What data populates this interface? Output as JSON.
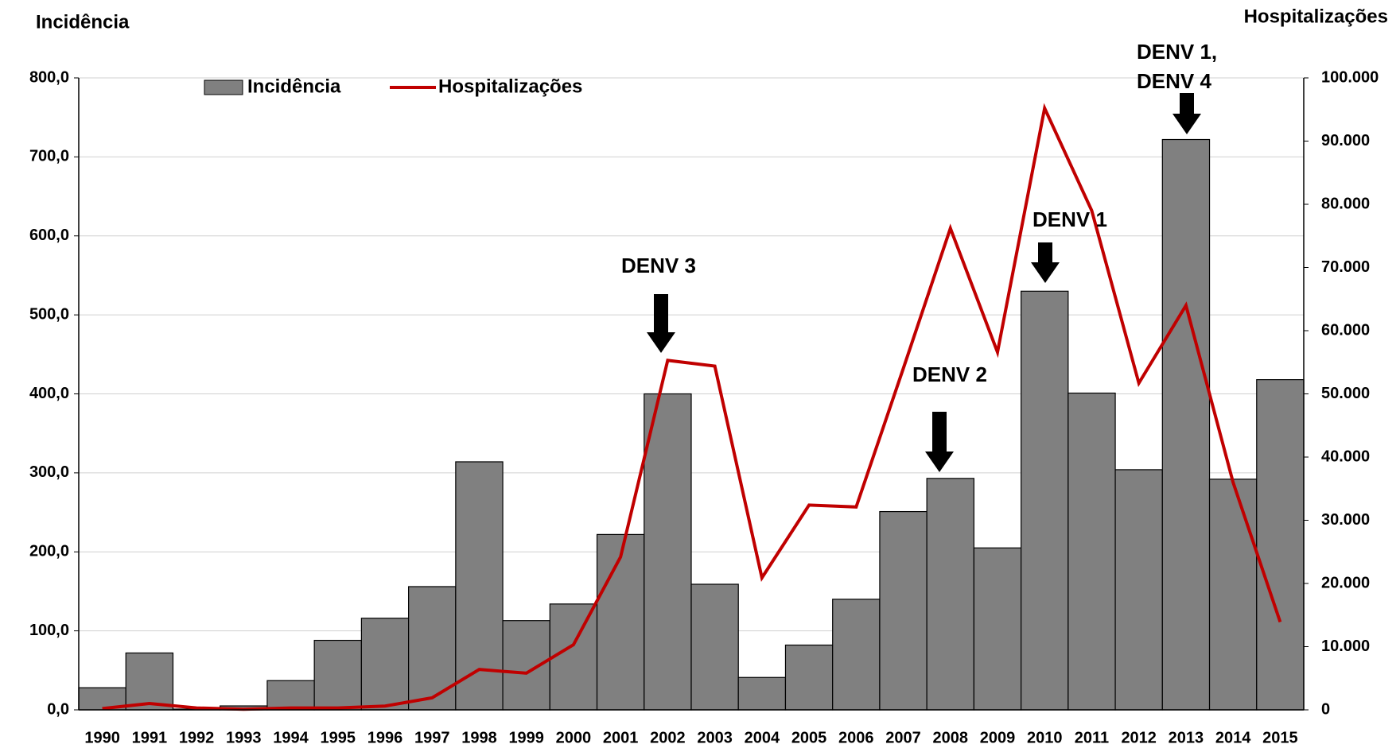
{
  "chart_data": {
    "type": "bar_line",
    "y_label": "Incidência",
    "y2_label": "Hospitalizações",
    "categories": [
      "1990",
      "1991",
      "1992",
      "1993",
      "1994",
      "1995",
      "1996",
      "1997",
      "1998",
      "1999",
      "2000",
      "2001",
      "2002",
      "2003",
      "2004",
      "2005",
      "2006",
      "2007",
      "2008",
      "2009",
      "2010",
      "2011",
      "2012",
      "2013",
      "2014",
      "2015"
    ],
    "series": [
      {
        "name": "Incidência",
        "type": "bar",
        "color": "#808080",
        "values": [
          28,
          72,
          1,
          5,
          37,
          88,
          116,
          156,
          314,
          113,
          134,
          222,
          400,
          159,
          41,
          82,
          140,
          251,
          293,
          205,
          530,
          401,
          304,
          722,
          292,
          418
        ]
      },
      {
        "name": "Hospitalizações",
        "type": "line",
        "axis": "y2",
        "color": "#c00000",
        "values": [
          200,
          1000,
          300,
          100,
          300,
          300,
          600,
          1900,
          6400,
          5800,
          10300,
          24200,
          55300,
          54400,
          20900,
          32400,
          32100,
          54000,
          76200,
          56600,
          95200,
          79000,
          51700,
          64000,
          36000,
          13900
        ]
      }
    ],
    "ylim": [
      0,
      800
    ],
    "yticks": [
      {
        "value": 0,
        "label": "0,0"
      },
      {
        "value": 100,
        "label": "100,0"
      },
      {
        "value": 200,
        "label": "200,0"
      },
      {
        "value": 300,
        "label": "300,0"
      },
      {
        "value": 400,
        "label": "400,0"
      },
      {
        "value": 500,
        "label": "500,0"
      },
      {
        "value": 600,
        "label": "600,0"
      },
      {
        "value": 700,
        "label": "700,0"
      },
      {
        "value": 800,
        "label": "800,0"
      }
    ],
    "y2lim": [
      0,
      100000
    ],
    "y2ticks": [
      0,
      {
        "value": 10000,
        "label": "10.000"
      },
      {
        "value": 20000,
        "label": "20.000"
      },
      {
        "value": 30000,
        "label": "30.000"
      },
      {
        "value": 40000,
        "label": "40.000"
      },
      {
        "value": 50000,
        "label": "50.000"
      },
      {
        "value": 60000,
        "label": "60.000"
      },
      {
        "value": 70000,
        "label": "70.000"
      },
      {
        "value": 80000,
        "label": "80.000"
      },
      {
        "value": 90000,
        "label": "90.000"
      },
      {
        "value": 100000,
        "label": "100.000"
      }
    ],
    "grid": true,
    "legend": "top-left",
    "annotations": [
      [
        "DENV 3"
      ],
      [
        "DENV 2"
      ],
      [
        "DENV 1"
      ],
      [
        "DENV 1,",
        "DENV 4"
      ]
    ]
  }
}
